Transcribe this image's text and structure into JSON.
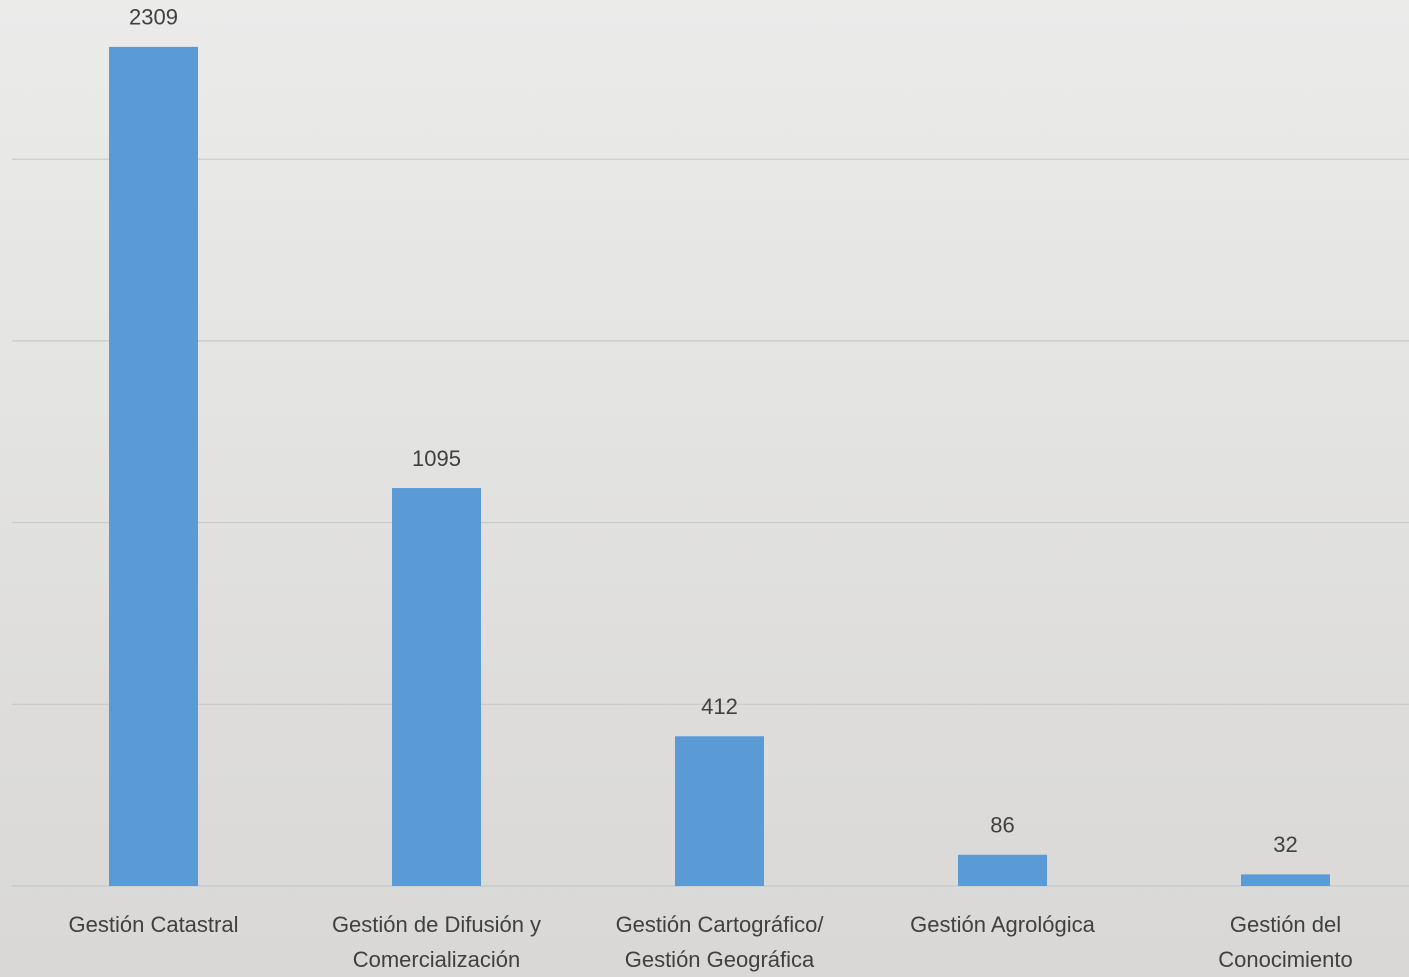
{
  "chart_data": {
    "type": "bar",
    "categories": [
      "Gestión Catastral",
      "Gestión de Difusión y\nComercialización",
      "Gestión Cartográfico/\nGestión Geográfica",
      "Gestión Agrológica",
      "Gestión del\nConocimiento"
    ],
    "values": [
      2309,
      1095,
      412,
      86,
      32
    ],
    "color": "#5b9bd5",
    "ylim": [
      0,
      2438
    ],
    "yticks": [
      0,
      500,
      1000,
      1500,
      2000
    ],
    "grid": true
  }
}
